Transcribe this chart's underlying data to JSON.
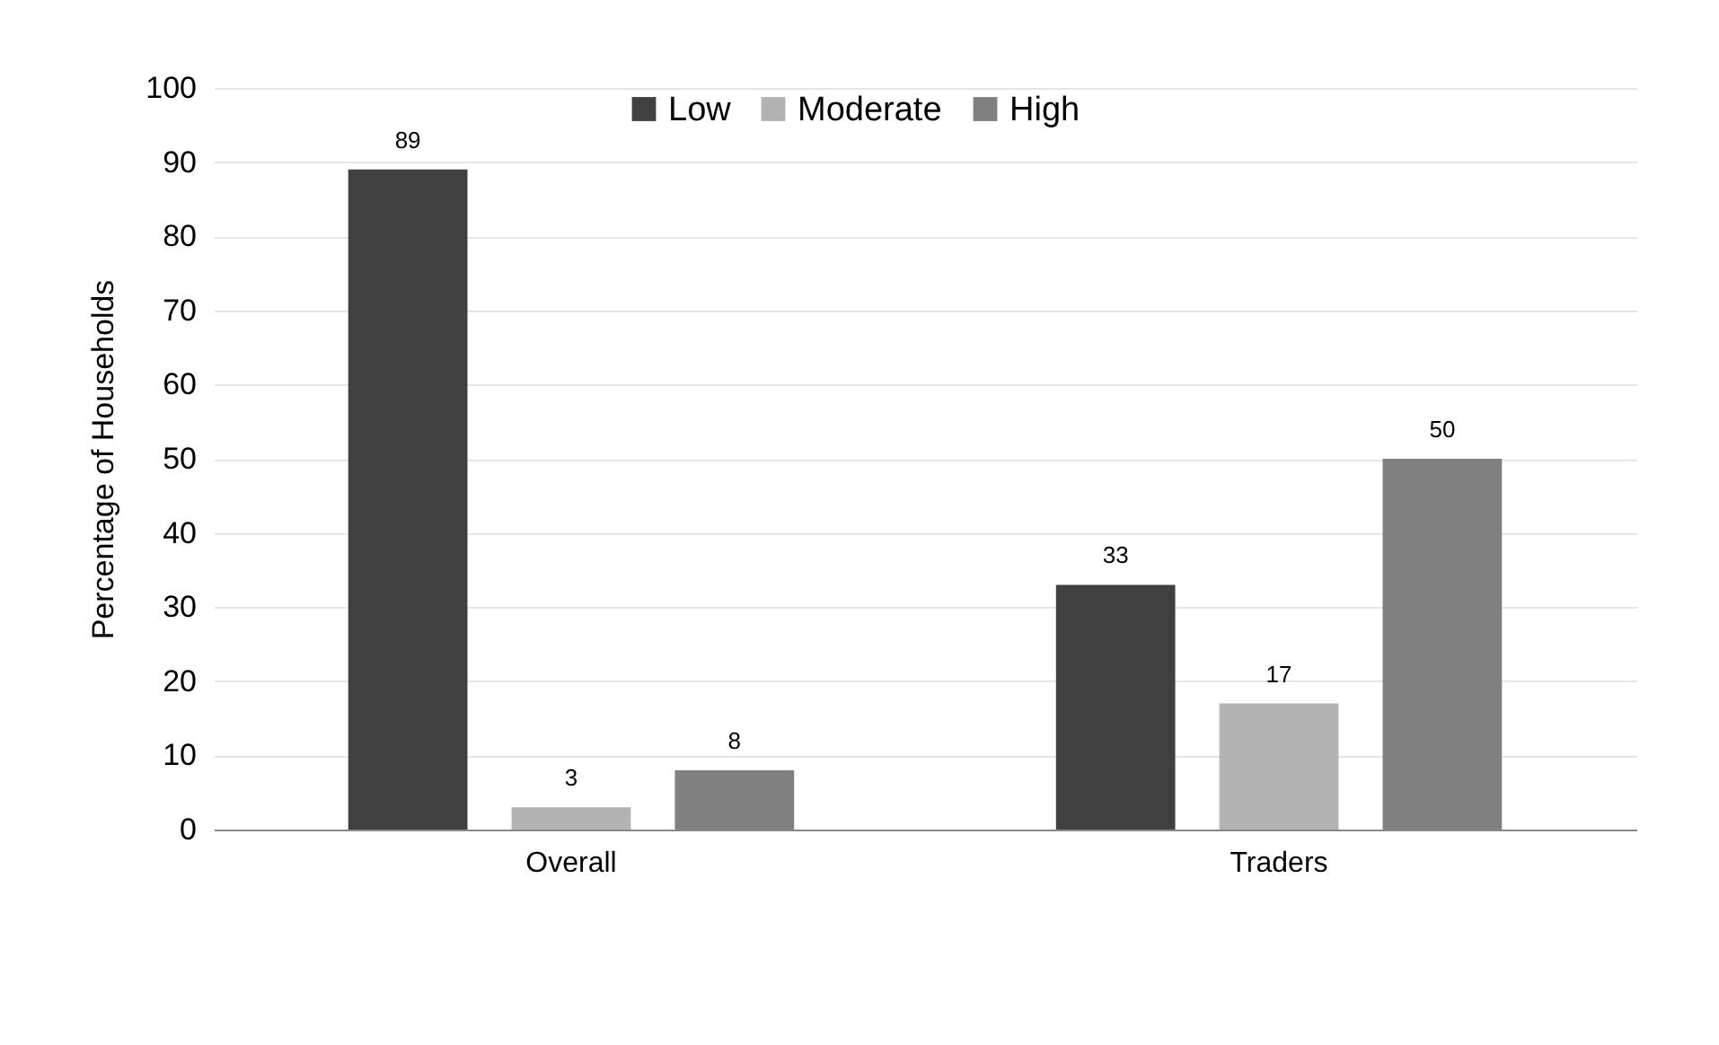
{
  "chart_data": {
    "type": "bar",
    "ylabel": "Percentage of Households",
    "categories": [
      "Overall",
      "Traders"
    ],
    "series": [
      {
        "name": "Low",
        "color": "#404040",
        "values": [
          89,
          33
        ]
      },
      {
        "name": "Moderate",
        "color": "#b3b3b3",
        "values": [
          3,
          17
        ]
      },
      {
        "name": "High",
        "color": "#808080",
        "values": [
          8,
          50
        ]
      }
    ],
    "ylim": [
      0,
      100
    ],
    "yticks": [
      0,
      10,
      20,
      30,
      40,
      50,
      60,
      70,
      80,
      90,
      100
    ],
    "grid": "y",
    "legend": "top",
    "data_labels": true
  }
}
